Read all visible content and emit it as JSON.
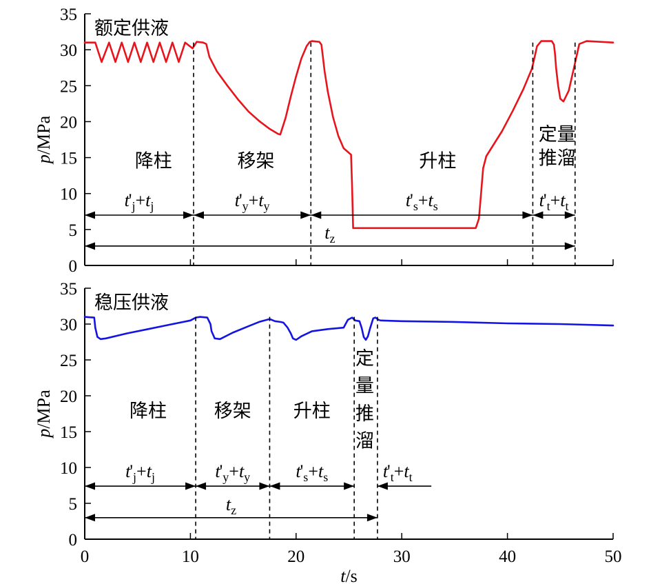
{
  "chart_data": [
    {
      "type": "line",
      "panel": "top",
      "title": "额定供液",
      "xlabel": "",
      "ylabel": "p/MPa",
      "xlim": [
        0,
        50
      ],
      "ylim": [
        0,
        35
      ],
      "xticks": [
        0,
        10,
        20,
        30,
        40,
        50
      ],
      "yticks": [
        0,
        5,
        10,
        15,
        20,
        25,
        30,
        35
      ],
      "grid": false,
      "series": [
        {
          "color": "#e8141c",
          "x": [
            0,
            1.0,
            1.6,
            2.3,
            2.9,
            3.5,
            4.1,
            4.7,
            5.3,
            5.9,
            6.5,
            7.1,
            7.7,
            8.3,
            8.9,
            9.5,
            10.2,
            10.6,
            11.2,
            11.5,
            11.8,
            12.5,
            13.5,
            14.5,
            15.5,
            16.5,
            17.5,
            18.3,
            18.5,
            19.0,
            19.5,
            20.0,
            20.5,
            21.0,
            21.3,
            21.5,
            22.2,
            22.4,
            22.7,
            23.0,
            23.5,
            24.0,
            24.5,
            25.2,
            25.3,
            25.4,
            30.0,
            37.0,
            37.3,
            37.5,
            37.7,
            38.0,
            39.5,
            40.5,
            41.5,
            42.3,
            42.5,
            42.8,
            43.2,
            44.2,
            44.4,
            44.5,
            44.6,
            44.8,
            45.0,
            45.3,
            45.8,
            46.3,
            46.8,
            47.5,
            50
          ],
          "y": [
            31,
            31,
            28.3,
            31,
            28.3,
            31,
            28.3,
            31,
            28.3,
            31,
            28.3,
            31,
            28.3,
            31,
            28.3,
            31,
            30.2,
            31.1,
            31,
            30.8,
            29,
            27,
            25,
            23.1,
            21.4,
            20.1,
            19,
            18.3,
            18.2,
            20.5,
            23.5,
            26.3,
            28.8,
            30.5,
            31.1,
            31.2,
            31.1,
            30.7,
            27,
            24.2,
            20.6,
            18,
            16.3,
            15.4,
            11,
            5.2,
            5.2,
            5.2,
            6.5,
            10,
            13.5,
            15.2,
            18.7,
            21.5,
            24.5,
            27.3,
            28.5,
            30.5,
            31.2,
            31.2,
            30.7,
            29.5,
            27.5,
            25,
            23.2,
            22.8,
            24.3,
            27.5,
            30.8,
            31.2,
            31
          ]
        }
      ],
      "annotations": [
        {
          "label": "降柱",
          "x": 6.5,
          "y": 14.6
        },
        {
          "label": "移架",
          "x": 16.2,
          "y": 14.6
        },
        {
          "label": "升柱",
          "x": 33.4,
          "y": 14.6
        },
        {
          "label": "定量",
          "x": 44.7,
          "y": 18.3
        },
        {
          "label": "推溜",
          "x": 44.7,
          "y": 15.0
        }
      ],
      "markers": [
        {
          "x": 10.3,
          "y_top": 31
        },
        {
          "x": 21.4,
          "y_top": 31
        },
        {
          "x": 42.4,
          "y_top": 31
        },
        {
          "x": 46.4,
          "y_top": 31
        }
      ],
      "intervals": [
        {
          "from": 0,
          "to": 10.3,
          "y": 7.0,
          "prime": "j",
          "sub": "j"
        },
        {
          "from": 10.3,
          "to": 21.4,
          "y": 7.0,
          "prime": "y",
          "sub": "y"
        },
        {
          "from": 21.4,
          "to": 42.4,
          "y": 7.0,
          "prime": "s",
          "sub": "s"
        },
        {
          "from": 42.4,
          "to": 46.4,
          "y": 7.0,
          "prime": "t",
          "sub": "t"
        }
      ],
      "total": {
        "from": 0,
        "to": 46.4,
        "y": 2.7,
        "sub": "z"
      }
    },
    {
      "type": "line",
      "panel": "bottom",
      "title": "稳压供液",
      "xlabel": "t/s",
      "ylabel": "p/MPa",
      "xlim": [
        0,
        50
      ],
      "ylim": [
        0,
        35
      ],
      "xticks": [
        0,
        10,
        20,
        30,
        40,
        50
      ],
      "yticks": [
        0,
        5,
        10,
        15,
        20,
        25,
        30,
        35
      ],
      "grid": false,
      "series": [
        {
          "color": "#1414e0",
          "x": [
            0,
            0.9,
            1.0,
            1.2,
            1.5,
            2.0,
            4.0,
            6.0,
            8.0,
            10.0,
            10.5,
            10.9,
            11.6,
            11.9,
            12.0,
            12.3,
            12.8,
            14.0,
            15.5,
            16.5,
            17.5,
            18.0,
            18.5,
            18.8,
            19.2,
            19.5,
            19.7,
            20.0,
            20.5,
            21.5,
            23.0,
            24.5,
            24.9,
            25.3,
            25.6,
            26.0,
            26.2,
            26.4,
            26.6,
            26.8,
            27.0,
            27.3,
            27.5,
            27.8,
            28.0,
            30.0,
            35.0,
            40.0,
            45.0,
            50
          ],
          "y": [
            31,
            30.9,
            29.5,
            28.2,
            27.9,
            28.0,
            28.7,
            29.3,
            29.9,
            30.5,
            30.9,
            31.0,
            30.9,
            30.0,
            29.0,
            28.0,
            27.9,
            28.8,
            29.7,
            30.3,
            30.7,
            30.4,
            30.3,
            30.2,
            29.5,
            28.7,
            28.0,
            27.8,
            28.3,
            29.0,
            29.3,
            29.5,
            30.6,
            30.9,
            30.5,
            30.4,
            29.5,
            28.2,
            27.8,
            28.3,
            29.4,
            30.8,
            30.9,
            30.6,
            30.5,
            30.4,
            30.3,
            30.1,
            30.0,
            29.8
          ]
        }
      ],
      "annotations": [
        {
          "label": "降柱",
          "x": 6.0,
          "y": 18.0
        },
        {
          "label": "移架",
          "x": 14.0,
          "y": 18.0
        },
        {
          "label": "升柱",
          "x": 21.5,
          "y": 18.0
        },
        {
          "label": "定",
          "x": 26.5,
          "y": 25.3
        },
        {
          "label": "量",
          "x": 26.5,
          "y": 21.5
        },
        {
          "label": "推",
          "x": 26.5,
          "y": 17.6
        },
        {
          "label": "溜",
          "x": 26.5,
          "y": 13.8
        }
      ],
      "markers": [
        {
          "x": 10.5,
          "y_top": 31
        },
        {
          "x": 17.5,
          "y_top": 31
        },
        {
          "x": 25.5,
          "y_top": 31
        },
        {
          "x": 27.7,
          "y_top": 31
        }
      ],
      "intervals": [
        {
          "from": 0,
          "to": 10.5,
          "y": 7.4,
          "prime": "j",
          "sub": "j"
        },
        {
          "from": 10.5,
          "to": 17.5,
          "y": 7.4,
          "prime": "y",
          "sub": "y"
        },
        {
          "from": 17.5,
          "to": 25.5,
          "y": 7.4,
          "prime": "s",
          "sub": "s"
        },
        {
          "from": 27.7,
          "to": 32.8,
          "y": 7.4,
          "prime": "t",
          "sub": "t",
          "open_right": true
        }
      ],
      "total": {
        "from": 0,
        "to": 27.7,
        "y": 3.0,
        "sub": "z"
      }
    }
  ]
}
